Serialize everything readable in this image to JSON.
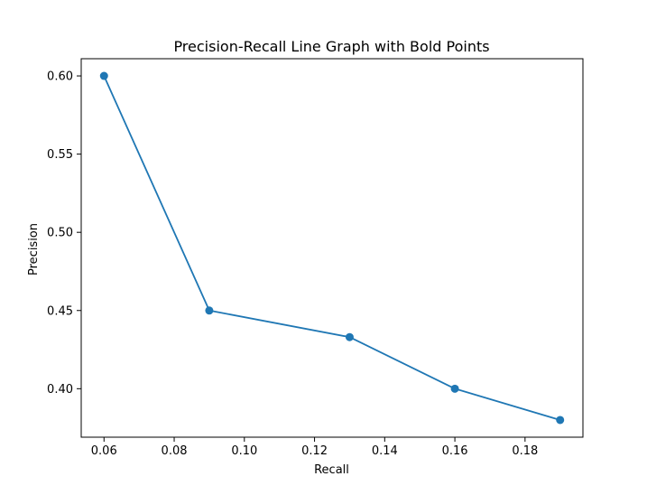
{
  "chart_data": {
    "type": "line",
    "title": "Precision-Recall Line Graph with Bold Points",
    "xlabel": "Recall",
    "ylabel": "Precision",
    "xlim": [
      0.0535,
      0.1965
    ],
    "ylim": [
      0.369,
      0.611
    ],
    "x_ticks": [
      0.06,
      0.08,
      0.1,
      0.12,
      0.14,
      0.16,
      0.18
    ],
    "x_tick_labels": [
      "0.06",
      "0.08",
      "0.10",
      "0.12",
      "0.14",
      "0.16",
      "0.18"
    ],
    "y_ticks": [
      0.4,
      0.45,
      0.5,
      0.55,
      0.6
    ],
    "y_tick_labels": [
      "0.40",
      "0.45",
      "0.50",
      "0.55",
      "0.60"
    ],
    "grid": false,
    "series": [
      {
        "x": [
          0.06,
          0.09,
          0.13,
          0.16,
          0.19
        ],
        "y": [
          0.6,
          0.45,
          0.433,
          0.4,
          0.38
        ],
        "color": "#1f77b4",
        "marker": "circle"
      }
    ]
  }
}
